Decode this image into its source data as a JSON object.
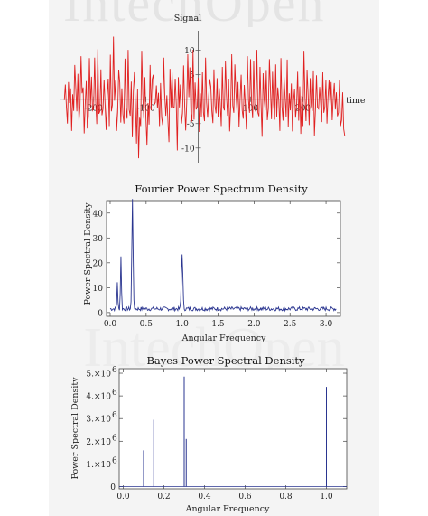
{
  "watermark": {
    "top": "IntechOpen",
    "bottom": "IntechOpen"
  },
  "chart_data": [
    {
      "type": "line",
      "title": "",
      "xlabel": "time",
      "ylabel": "Signal",
      "xlim": [
        -265,
        270
      ],
      "ylim": [
        -13,
        14
      ],
      "xticks": [
        -200,
        -100,
        100,
        200
      ],
      "xtick_labels": [
        "-200",
        "-100",
        "100",
        "200"
      ],
      "yticks": [
        -10,
        -5,
        5,
        10
      ],
      "ytick_labels": [
        "-10",
        "-5",
        "5",
        "10"
      ],
      "series": [
        {
          "color": "#e02020",
          "sample_step": 2,
          "x_start": -256,
          "values": [
            -0.2,
            3,
            -1.5,
            -5,
            3.5,
            -0.8,
            2.2,
            -6.5,
            1,
            -2.4,
            7,
            2.2,
            -2.5,
            5.2,
            -4.4,
            -1.5,
            8.8,
            1.2,
            2.4,
            -7,
            -1,
            3.7,
            -6,
            -3.5,
            8.4,
            -1.5,
            4.6,
            -2.3,
            -1.9,
            8.5,
            -0.5,
            -5.1,
            10.2,
            -3,
            -2.5,
            6.1,
            -3.3,
            -2,
            4,
            -1.2,
            -6.3,
            0.8,
            4.2,
            -5.5,
            9.1,
            -2.5,
            -1.1,
            12.8,
            -0.3,
            3.8,
            -6.5,
            -2.7,
            6,
            3.4,
            -4.8,
            2.2,
            -3.1,
            -5,
            8.3,
            -1.8,
            -4,
            10.1,
            -2.2,
            -3.4,
            3.6,
            -7.8,
            1.5,
            5.5,
            -1.1,
            -9.1,
            2,
            -12.1,
            -3.8,
            -5.5,
            9.9,
            1,
            -4,
            4.5,
            -3.9,
            -9.5,
            -0.8,
            -5.2,
            7,
            -2.3,
            4.1,
            5,
            -1.1,
            -0.7,
            2.8,
            -1.8,
            1.3,
            -5.5,
            3.3,
            -3.8,
            -5.3,
            8.5,
            0.7,
            -3.4,
            0.8,
            -4.3,
            -8.8,
            6.2,
            -1.7,
            5.5,
            -1.6,
            -1.7,
            4.2,
            -1,
            -10.5,
            4.5,
            -1.7,
            3,
            -5,
            -2.9,
            6.9,
            -1.1,
            -6.4,
            -0.7,
            9.2,
            0.4,
            6.5,
            -2.8,
            -4.6,
            10.1,
            -4.2,
            3.4,
            -2.1,
            -1.6,
            4.4,
            -6.7,
            1.2,
            -3.6,
            5.5,
            -2.8,
            -4.5,
            8.5,
            -0.7,
            -3.8,
            0.7,
            4.1,
            2.6,
            -2.4,
            -4.9,
            6.1,
            -1.3,
            -2.9,
            4.3,
            -3.6,
            2.3,
            -0.8,
            -5.5,
            6.6,
            -1.6,
            -2.3,
            7.7,
            0.7,
            -3.4,
            4.2,
            -6.6,
            -1.6,
            9.2,
            -1.3,
            -2.8,
            7.1,
            1.4,
            -2.4,
            3.5,
            -5.7,
            0.1,
            5,
            -2.3,
            -4,
            2.9,
            -1.2,
            -6.2,
            8.8,
            -0.2,
            -2.8,
            8.2,
            -0.9,
            -3.9,
            7.7,
            -1.5,
            -2.6,
            10.1,
            -2.8,
            -3.5,
            6.6,
            -0.9,
            -7.7,
            5.3,
            -0.1,
            -2.3,
            5.8,
            -4.3,
            -1.9,
            8.2,
            2.1,
            -4.1,
            5.6,
            -1.1,
            -4.2,
            7.1,
            -3.7,
            2.4,
            -0.3,
            -6.5,
            8.4,
            -1.5,
            -4.4,
            4.6,
            0.2,
            -3.6,
            8.1,
            -5.7,
            1.2,
            -2.3,
            3.2,
            -6.6,
            -0.4,
            2,
            -3.8,
            -1.3,
            5.6,
            -4.4,
            2.6,
            -7.1,
            0.7,
            -5.5,
            9.9,
            0.5,
            -4.5,
            5.9,
            0.9,
            -5.3,
            4.3,
            -1.4,
            -2.4,
            5.7,
            -7.5,
            -2.2,
            4.9,
            -1.7,
            -2,
            2.5,
            -0.9,
            -4.7,
            5.5,
            -2.8,
            -1.5,
            3.9,
            -5,
            0.4,
            3.9,
            -1.4,
            3.5,
            -4.3,
            0.3,
            3.3,
            -2.1,
            1.4,
            -3.5,
            -2.8,
            3.9,
            -5.5,
            -4.3,
            1.4,
            -6.1,
            -7.5
          ]
        }
      ]
    },
    {
      "type": "line",
      "title": "Fourier Power Spectrum Density",
      "xlabel": "Angular Frequency",
      "ylabel": "Power Spectral Density",
      "xlim": [
        -0.05,
        3.2
      ],
      "ylim": [
        -1.5,
        45
      ],
      "xticks": [
        0,
        0.5,
        1,
        1.5,
        2,
        2.5,
        3
      ],
      "xtick_labels": [
        "0.0",
        "0.5",
        "1.0",
        "1.5",
        "2.0",
        "2.5",
        "3.0"
      ],
      "yticks": [
        0,
        10,
        20,
        30,
        40
      ],
      "ytick_labels": [
        "0",
        "10",
        "20",
        "30",
        "40"
      ],
      "series": [
        {
          "color": "#2a3590",
          "baseline": 1.5,
          "noise_amplitude": 0.8,
          "x_step": 0.01,
          "x_max": 3.14,
          "peaks": [
            {
              "x": 0.1,
              "height": 11,
              "width": 0.008
            },
            {
              "x": 0.15,
              "height": 21.5,
              "width": 0.009
            },
            {
              "x": 0.31,
              "height": 44.5,
              "width": 0.012
            },
            {
              "x": 1.0,
              "height": 22.5,
              "width": 0.014
            }
          ]
        }
      ]
    },
    {
      "type": "line",
      "title": "Bayes Power Spectral Density",
      "xlabel": "Angular Frequency",
      "ylabel": "Power Spectral Density",
      "xlim": [
        -0.02,
        1.1
      ],
      "ylim": [
        -100000,
        5200000
      ],
      "xticks": [
        0,
        0.2,
        0.4,
        0.6,
        0.8,
        1
      ],
      "xtick_labels": [
        "0.0",
        "0.2",
        "0.4",
        "0.6",
        "0.8",
        "1.0"
      ],
      "yticks": [
        0,
        1000000,
        2000000,
        3000000,
        4000000,
        5000000
      ],
      "ytick_labels": [
        "0",
        "1.×10",
        "2.×10",
        "3.×10",
        "4.×10",
        "5.×10"
      ],
      "ytick_exponent": "6",
      "series": [
        {
          "color": "#2a3590",
          "spikes": [
            {
              "x": 0.1,
              "y": 1600000
            },
            {
              "x": 0.15,
              "y": 2950000
            },
            {
              "x": 0.3,
              "y": 4850000
            },
            {
              "x": 0.31,
              "y": 2100000
            },
            {
              "x": 1.0,
              "y": 4400000
            }
          ]
        }
      ]
    }
  ]
}
